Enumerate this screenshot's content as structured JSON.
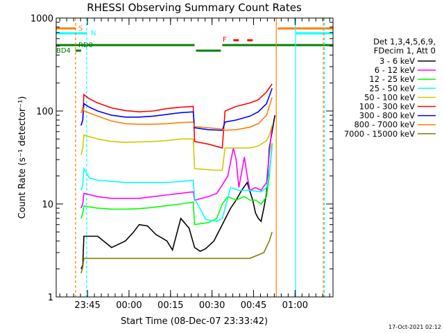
{
  "chart_data": {
    "type": "line",
    "title": "RHESSI Observing Summary Count Rates",
    "xlabel": "Start Time (08-Dec-07 23:33:42)",
    "ylabel": "Count Rate (s⁻¹ detector⁻¹)",
    "yscale": "log",
    "ylim": [
      1,
      1000
    ],
    "xlim_minutes": [
      0,
      100
    ],
    "y_ticks": [
      {
        "value": 1,
        "label": "1"
      },
      {
        "value": 10,
        "label": "10"
      },
      {
        "value": 100,
        "label": "100"
      },
      {
        "value": 1000,
        "label": "1000"
      }
    ],
    "x_ticks": [
      {
        "minute": 11.3,
        "label": "23:45"
      },
      {
        "minute": 26.3,
        "label": "00:00"
      },
      {
        "minute": 41.3,
        "label": "00:15"
      },
      {
        "minute": 56.3,
        "label": "00:30"
      },
      {
        "minute": 71.3,
        "label": "00:45"
      },
      {
        "minute": 86.3,
        "label": "01:00"
      }
    ],
    "legend_header": [
      "Det 1,3,4,5,6,9,",
      "FDecim 1, Att 0"
    ],
    "legend_position": "right",
    "series": [
      {
        "name": "3 - 6 keV",
        "color": "#000000",
        "points": [
          [
            9,
            2
          ],
          [
            9.6,
            2.2
          ],
          [
            10,
            4.5
          ],
          [
            15,
            4.5
          ],
          [
            20,
            3.4
          ],
          [
            25,
            4
          ],
          [
            28,
            5
          ],
          [
            30,
            6
          ],
          [
            33,
            5.8
          ],
          [
            36,
            4.7
          ],
          [
            40,
            4
          ],
          [
            42,
            3.2
          ],
          [
            45,
            7
          ],
          [
            48,
            5.5
          ],
          [
            50,
            3.4
          ],
          [
            52,
            3.1
          ],
          [
            54,
            3.3
          ],
          [
            57,
            4
          ],
          [
            60,
            6
          ],
          [
            63,
            9
          ],
          [
            65,
            11
          ],
          [
            67,
            14
          ],
          [
            69,
            17
          ],
          [
            71,
            11
          ],
          [
            72,
            8
          ],
          [
            73,
            7
          ],
          [
            74,
            6.5
          ],
          [
            75,
            9
          ],
          [
            76,
            13
          ],
          [
            77,
            40
          ],
          [
            78,
            60
          ],
          [
            79,
            90
          ]
        ]
      },
      {
        "name": "6 - 12 keV",
        "color": "#ff00ff",
        "points": [
          [
            9,
            9
          ],
          [
            9.6,
            10
          ],
          [
            10,
            13
          ],
          [
            15,
            12
          ],
          [
            20,
            11.5
          ],
          [
            25,
            11.5
          ],
          [
            30,
            11.5
          ],
          [
            35,
            12
          ],
          [
            40,
            12.5
          ],
          [
            45,
            13
          ],
          [
            49.5,
            13.5
          ],
          [
            50,
            11
          ],
          [
            55,
            12
          ],
          [
            58,
            13
          ],
          [
            60,
            16
          ],
          [
            62,
            20
          ],
          [
            64,
            40
          ],
          [
            65,
            30
          ],
          [
            66,
            15
          ],
          [
            68,
            32
          ],
          [
            69,
            20
          ],
          [
            70,
            14
          ],
          [
            72,
            15
          ],
          [
            74,
            14
          ],
          [
            76,
            17
          ],
          [
            77,
            35
          ],
          [
            78,
            70
          ]
        ]
      },
      {
        "name": "12 - 25 keV",
        "color": "#00ff00",
        "points": [
          [
            9,
            7
          ],
          [
            9.6,
            8
          ],
          [
            10,
            9.5
          ],
          [
            15,
            9
          ],
          [
            20,
            8.8
          ],
          [
            25,
            8.8
          ],
          [
            30,
            8.9
          ],
          [
            35,
            9.2
          ],
          [
            40,
            9.6
          ],
          [
            45,
            10
          ],
          [
            49.5,
            10.5
          ],
          [
            50,
            6
          ],
          [
            55,
            6.3
          ],
          [
            58,
            7
          ],
          [
            60,
            10
          ],
          [
            62,
            12
          ],
          [
            65,
            11
          ],
          [
            68,
            12
          ],
          [
            70,
            11
          ],
          [
            72,
            11
          ],
          [
            74,
            10
          ],
          [
            76,
            12
          ],
          [
            77,
            20
          ],
          [
            78,
            45
          ]
        ]
      },
      {
        "name": "25 - 50 keV",
        "color": "#00ffff",
        "points": [
          [
            9,
            14
          ],
          [
            9.6,
            16
          ],
          [
            10,
            24
          ],
          [
            12,
            19
          ],
          [
            15,
            18
          ],
          [
            20,
            17.5
          ],
          [
            25,
            17
          ],
          [
            30,
            17
          ],
          [
            35,
            17
          ],
          [
            40,
            17
          ],
          [
            45,
            17.5
          ],
          [
            49.5,
            18
          ],
          [
            50,
            11.5
          ],
          [
            54,
            6.8
          ],
          [
            58,
            6.5
          ],
          [
            60,
            7
          ],
          [
            63,
            15
          ],
          [
            66,
            14
          ],
          [
            70,
            14
          ],
          [
            74,
            13.5
          ],
          [
            76,
            15
          ],
          [
            77,
            22
          ],
          [
            78,
            40
          ]
        ]
      },
      {
        "name": "50 - 100 keV",
        "color": "#cccc00",
        "points": [
          [
            9,
            34
          ],
          [
            9.6,
            40
          ],
          [
            10,
            55
          ],
          [
            15,
            50
          ],
          [
            20,
            47
          ],
          [
            25,
            46
          ],
          [
            30,
            46.5
          ],
          [
            35,
            47
          ],
          [
            40,
            48
          ],
          [
            45,
            50
          ],
          [
            49.5,
            50
          ],
          [
            50,
            24
          ],
          [
            58,
            23
          ],
          [
            60,
            23
          ],
          [
            61,
            40
          ],
          [
            65,
            40
          ],
          [
            70,
            40
          ],
          [
            73,
            42
          ],
          [
            76,
            48
          ],
          [
            77,
            55
          ],
          [
            78,
            70
          ]
        ]
      },
      {
        "name": "100 - 300 keV",
        "color": "#ff0000",
        "points": [
          [
            9,
            70
          ],
          [
            9.6,
            80
          ],
          [
            10,
            150
          ],
          [
            12,
            135
          ],
          [
            15,
            122
          ],
          [
            20,
            108
          ],
          [
            25,
            101
          ],
          [
            30,
            98
          ],
          [
            35,
            100
          ],
          [
            40,
            106
          ],
          [
            45,
            110
          ],
          [
            49.5,
            112
          ],
          [
            50,
            47
          ],
          [
            55,
            44
          ],
          [
            60,
            40
          ],
          [
            61,
            100
          ],
          [
            65,
            112
          ],
          [
            70,
            122
          ],
          [
            73,
            132
          ],
          [
            76,
            160
          ],
          [
            78,
            195
          ]
        ]
      },
      {
        "name": "300 - 800 keV",
        "color": "#0000ff",
        "points": [
          [
            9,
            70
          ],
          [
            9.6,
            80
          ],
          [
            10,
            120
          ],
          [
            12,
            110
          ],
          [
            15,
            100
          ],
          [
            20,
            90
          ],
          [
            25,
            86
          ],
          [
            30,
            86
          ],
          [
            35,
            88
          ],
          [
            40,
            92
          ],
          [
            45,
            96
          ],
          [
            49.5,
            98
          ],
          [
            50,
            66
          ],
          [
            55,
            63
          ],
          [
            60,
            62
          ],
          [
            61,
            76
          ],
          [
            65,
            80
          ],
          [
            70,
            88
          ],
          [
            73,
            98
          ],
          [
            76,
            120
          ],
          [
            78,
            175
          ]
        ]
      },
      {
        "name": "800 - 7000 keV",
        "color": "#ff7f00",
        "points": [
          [
            9,
            95
          ],
          [
            9.6,
            110
          ],
          [
            10,
            100
          ],
          [
            15,
            88
          ],
          [
            20,
            78
          ],
          [
            25,
            73
          ],
          [
            30,
            72
          ],
          [
            35,
            72
          ],
          [
            40,
            73
          ],
          [
            45,
            75
          ],
          [
            49.5,
            76
          ],
          [
            50,
            68
          ],
          [
            55,
            66
          ],
          [
            60,
            64
          ],
          [
            61,
            62
          ],
          [
            65,
            63
          ],
          [
            70,
            67
          ],
          [
            73,
            73
          ],
          [
            76,
            90
          ],
          [
            78,
            140
          ]
        ]
      },
      {
        "name": "7000 - 15000 keV",
        "color": "#808000",
        "points": [
          [
            9,
            1.8
          ],
          [
            9.6,
            2.1
          ],
          [
            10,
            2.6
          ],
          [
            15,
            2.6
          ],
          [
            20,
            2.6
          ],
          [
            25,
            2.6
          ],
          [
            30,
            2.6
          ],
          [
            35,
            2.6
          ],
          [
            40,
            2.6
          ],
          [
            45,
            2.6
          ],
          [
            50,
            2.6
          ],
          [
            55,
            2.6
          ],
          [
            60,
            2.6
          ],
          [
            65,
            2.6
          ],
          [
            70,
            2.6
          ],
          [
            75,
            3
          ],
          [
            77,
            4
          ],
          [
            78,
            5
          ]
        ]
      }
    ],
    "annotations": [
      {
        "text": "S",
        "color": "#ff7f00"
      },
      {
        "text": "N",
        "color": "#00ffff"
      },
      {
        "text": "F",
        "color": "#ff0000"
      },
      {
        "text": "RD0",
        "color": "#008000"
      },
      {
        "text": "BD4",
        "color": "#008000"
      }
    ]
  },
  "footer": {
    "timestamp": "17-Oct-2021 02:12"
  }
}
